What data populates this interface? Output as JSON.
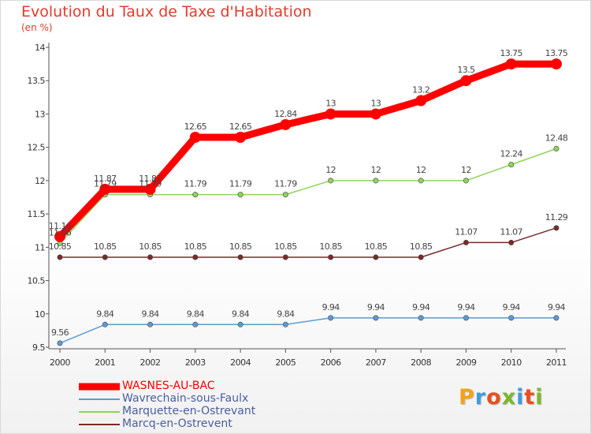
{
  "title": "Evolution du Taux de Taxe d'Habitation",
  "subtitle": "(en %)",
  "logo": {
    "letters": [
      "P",
      "r",
      "o",
      "x",
      "i",
      "t",
      "i"
    ],
    "colors": [
      "#f2a31b",
      "#3f9be0",
      "#e8501f",
      "#7ab829",
      "#3f9be0",
      "#e8501f",
      "#7ab829"
    ]
  },
  "chart_data": {
    "type": "line",
    "x": [
      "2000",
      "2001",
      "2002",
      "2003",
      "2004",
      "2005",
      "2006",
      "2007",
      "2008",
      "2009",
      "2010",
      "2011"
    ],
    "ylim": [
      9.5,
      14
    ],
    "yticks": [
      "9.5",
      "10",
      "10.5",
      "11",
      "11.5",
      "12",
      "12.5",
      "13",
      "13.5",
      "14"
    ],
    "grid": false,
    "legend_position": "bottom-left",
    "series": [
      {
        "name": "WASNES-AU-BAC",
        "color": "#ff0000",
        "values": [
          11.16,
          11.87,
          11.87,
          12.65,
          12.65,
          12.84,
          13,
          13,
          13.2,
          13.5,
          13.75,
          13.75
        ],
        "labels": [
          "11.16",
          "11.87",
          "11.87",
          "12.65",
          "12.65",
          "12.84",
          "13",
          "13",
          "13.2",
          "13.5",
          "13.75",
          "13.75"
        ]
      },
      {
        "name": "Wavrechain-sous-Faulx",
        "color": "#5b9bd5",
        "values": [
          9.56,
          9.84,
          9.84,
          9.84,
          9.84,
          9.84,
          9.94,
          9.94,
          9.94,
          9.94,
          9.94,
          9.94
        ],
        "labels": [
          "9.56",
          "9.84",
          "9.84",
          "9.84",
          "9.84",
          "9.84",
          "9.94",
          "9.94",
          "9.94",
          "9.94",
          "9.94",
          "9.94"
        ]
      },
      {
        "name": "Marquette-en-Ostrevant",
        "color": "#8fd45a",
        "values": [
          11.06,
          11.79,
          11.79,
          11.79,
          11.79,
          11.79,
          12,
          12,
          12,
          12,
          12.24,
          12.48
        ],
        "labels": [
          "11.06",
          "11.79",
          "11.79",
          "11.79",
          "11.79",
          "11.79",
          "12",
          "12",
          "12",
          "12",
          "12.24",
          "12.48"
        ]
      },
      {
        "name": "Marcq-en-Ostrevent",
        "color": "#7a2a2a",
        "values": [
          10.85,
          10.85,
          10.85,
          10.85,
          10.85,
          10.85,
          10.85,
          10.85,
          10.85,
          11.07,
          11.07,
          11.29
        ],
        "labels": [
          "10.85",
          "10.85",
          "10.85",
          "10.85",
          "10.85",
          "10.85",
          "10.85",
          "10.85",
          "10.85",
          "11.07",
          "11.07",
          "11.29"
        ]
      }
    ]
  }
}
